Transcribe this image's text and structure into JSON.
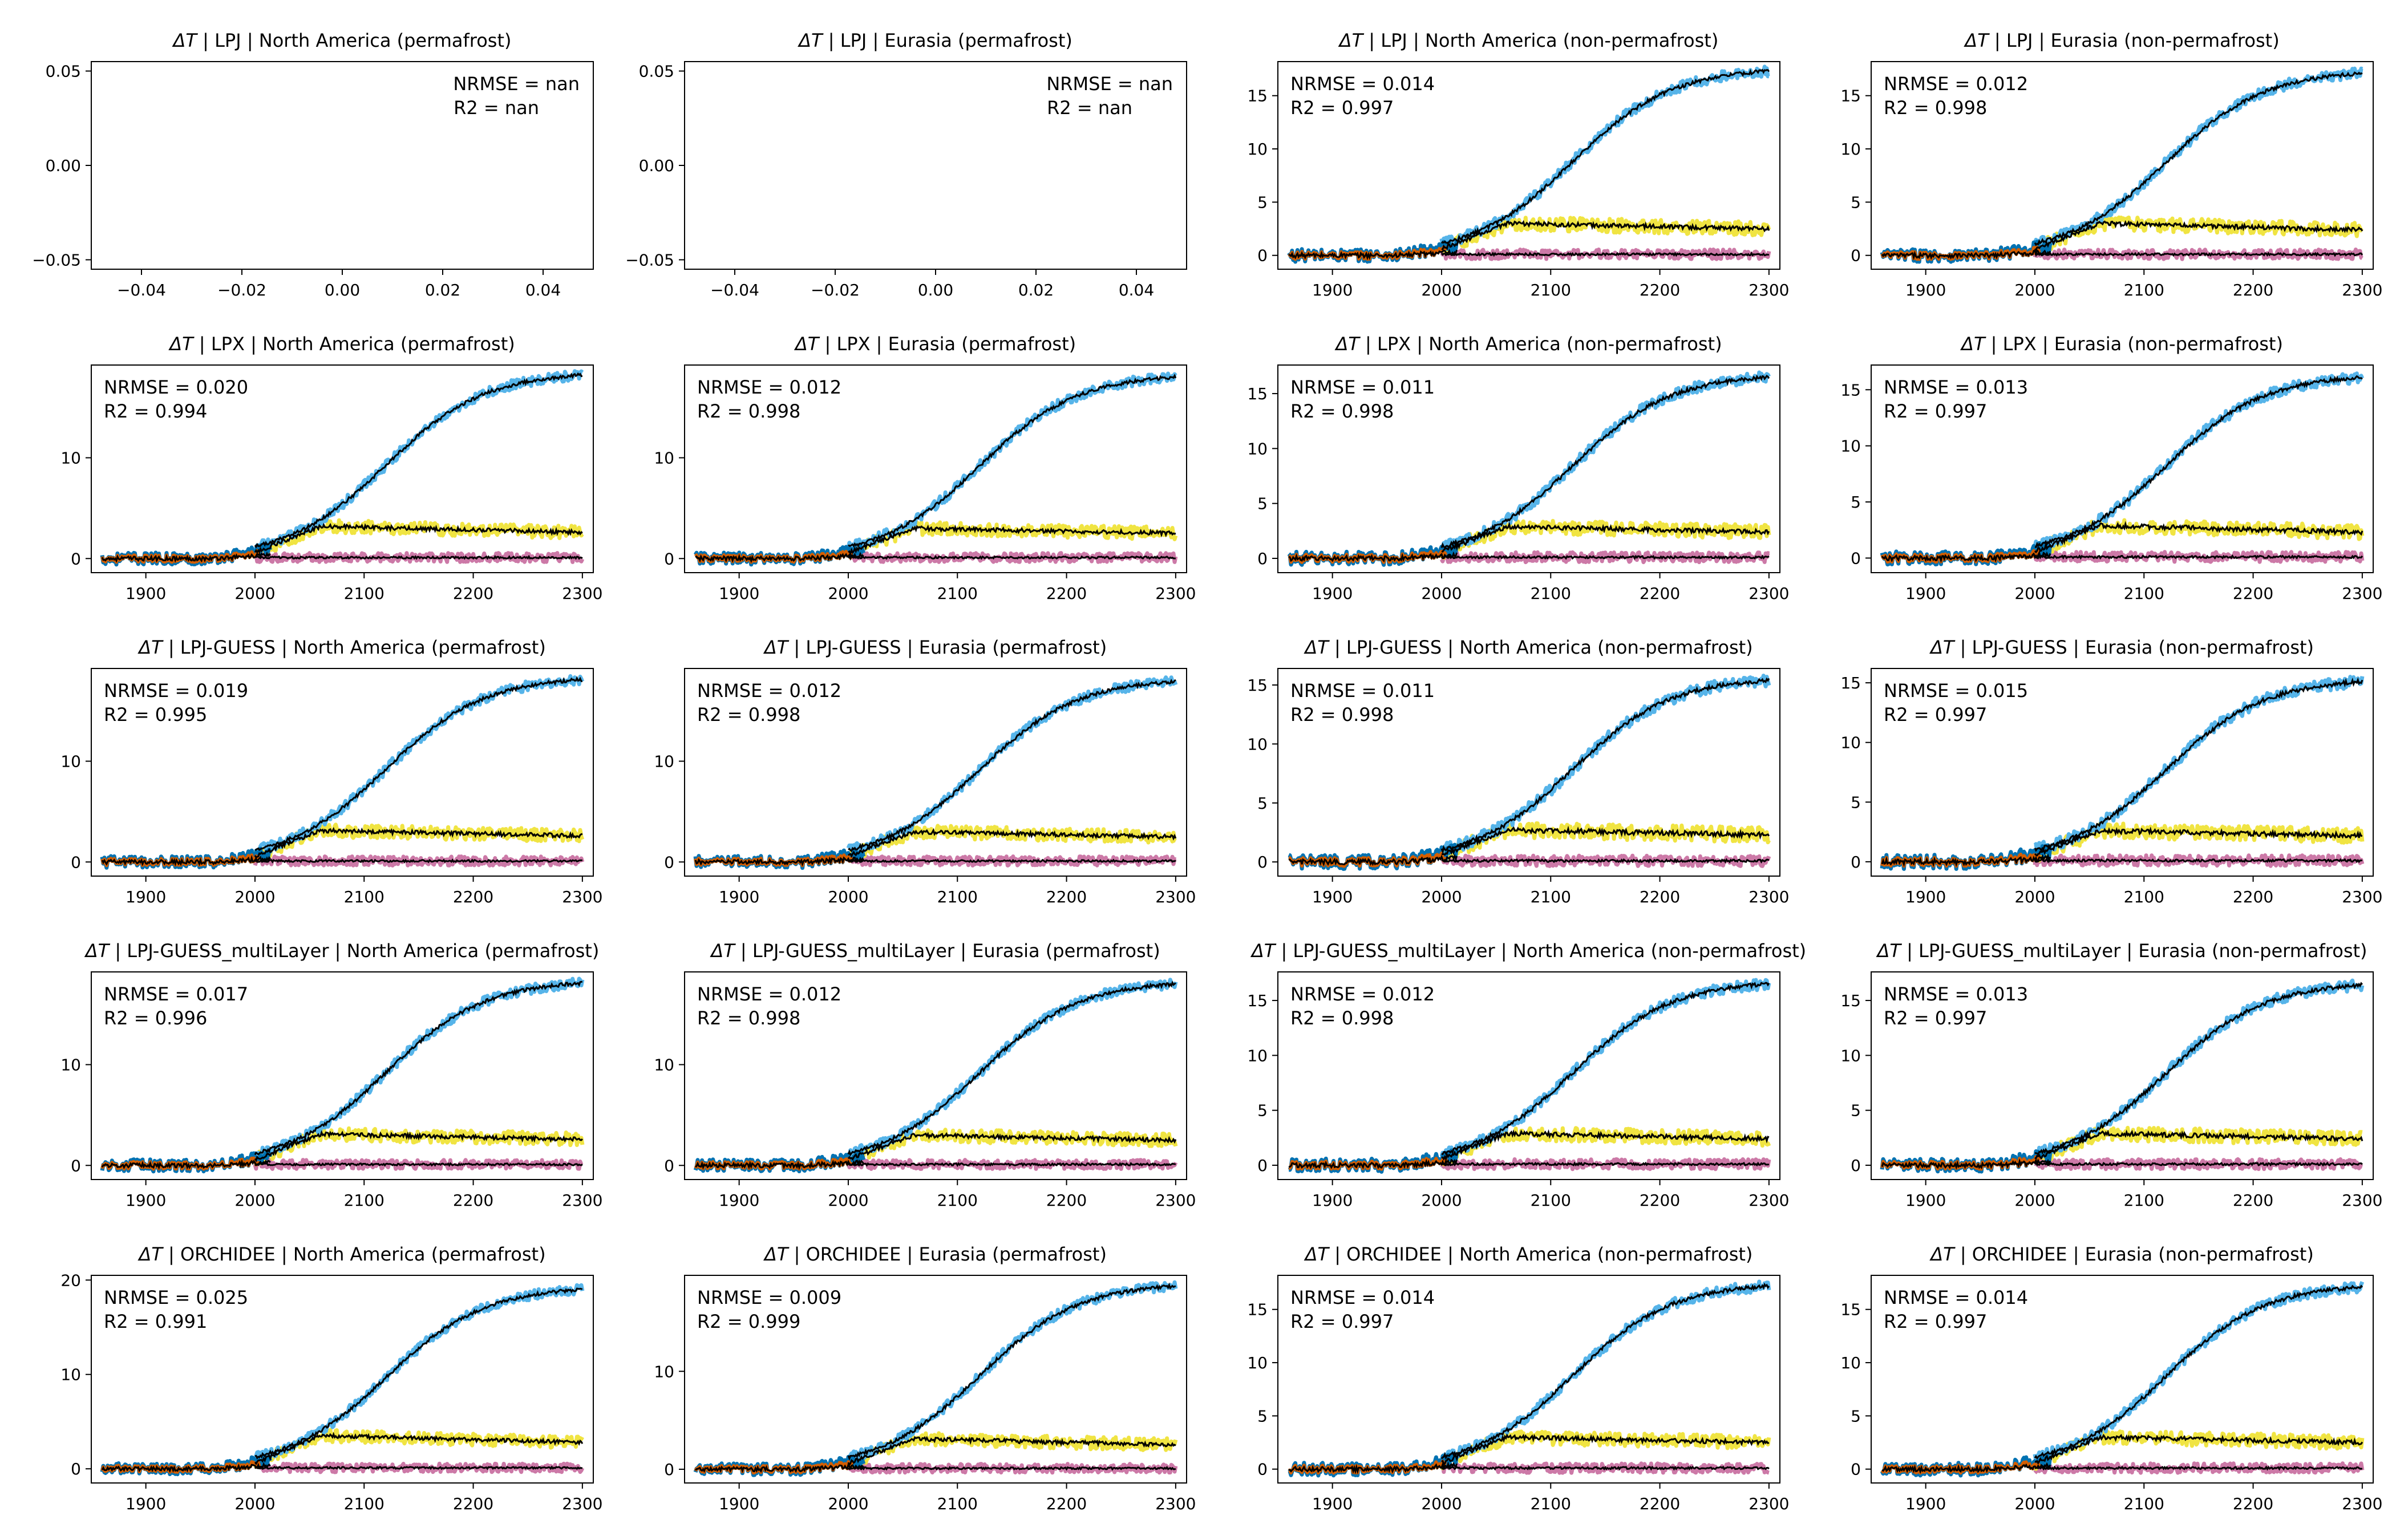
{
  "figure": {
    "colors": {
      "hist_a": "#0072b2",
      "hist_b": "#d55e00",
      "ssp_high": "#56b4e9",
      "ssp_mid": "#f0e442",
      "ssp_low": "#cc79a7",
      "emulator": "#000000"
    }
  },
  "chart_data": [
    {
      "type": "scatter",
      "title_var": "ΔT",
      "title": " | LPJ | North America (permafrost)",
      "nrmse": "NRMSE = nan",
      "r2": "R2 = nan",
      "empty": true,
      "xlim": [
        -0.05,
        0.05
      ],
      "ylim": [
        -0.055,
        0.055
      ],
      "xticks": [
        -0.04,
        -0.02,
        0.0,
        0.02,
        0.04
      ],
      "xtick_labels": [
        "−0.04",
        "−0.02",
        "0.00",
        "0.02",
        "0.04"
      ],
      "yticks": [
        -0.05,
        0.0,
        0.05
      ],
      "ytick_labels": [
        "−0.05",
        "0.00",
        "0.05"
      ],
      "stats_pos": "upper-right",
      "series": []
    },
    {
      "type": "scatter",
      "title_var": "ΔT",
      "title": " | LPJ | Eurasia (permafrost)",
      "nrmse": "NRMSE = nan",
      "r2": "R2 = nan",
      "empty": true,
      "xlim": [
        -0.05,
        0.05
      ],
      "ylim": [
        -0.055,
        0.055
      ],
      "xticks": [
        -0.04,
        -0.02,
        0.0,
        0.02,
        0.04
      ],
      "xtick_labels": [
        "−0.04",
        "−0.02",
        "0.00",
        "0.02",
        "0.04"
      ],
      "yticks": [
        -0.05,
        0.0,
        0.05
      ],
      "ytick_labels": [
        "−0.05",
        "0.00",
        "0.05"
      ],
      "stats_pos": "upper-right",
      "series": []
    },
    {
      "type": "line",
      "title_var": "ΔT",
      "title": " | LPJ | North America (non-permafrost)",
      "nrmse": "NRMSE = 0.014",
      "r2": "R2 = 0.997",
      "xlim": [
        1850,
        2310
      ],
      "ylim": [
        -1.3,
        18.2
      ],
      "xticks": [
        1900,
        2000,
        2100,
        2200,
        2300
      ],
      "xtick_labels": [
        "1900",
        "2000",
        "2100",
        "2200",
        "2300"
      ],
      "yticks": [
        0,
        5,
        10,
        15
      ],
      "ytick_labels": [
        "0",
        "5",
        "10",
        "15"
      ],
      "stats_pos": "upper-left",
      "high_end": 17.3,
      "mid_peak": 3.0,
      "mid_end": 2.5
    },
    {
      "type": "line",
      "title_var": "ΔT",
      "title": " | LPJ | Eurasia (non-permafrost)",
      "nrmse": "NRMSE = 0.012",
      "r2": "R2 = 0.998",
      "xlim": [
        1850,
        2310
      ],
      "ylim": [
        -1.3,
        18.2
      ],
      "xticks": [
        1900,
        2000,
        2100,
        2200,
        2300
      ],
      "xtick_labels": [
        "1900",
        "2000",
        "2100",
        "2200",
        "2300"
      ],
      "yticks": [
        0,
        5,
        10,
        15
      ],
      "ytick_labels": [
        "0",
        "5",
        "10",
        "15"
      ],
      "stats_pos": "upper-left",
      "high_end": 17.1,
      "mid_peak": 3.0,
      "mid_end": 2.4
    },
    {
      "type": "line",
      "title_var": "ΔT",
      "title": " | LPX | North America (permafrost)",
      "nrmse": "NRMSE = 0.020",
      "r2": "R2 = 0.994",
      "xlim": [
        1850,
        2310
      ],
      "ylim": [
        -1.4,
        19.2
      ],
      "xticks": [
        1900,
        2000,
        2100,
        2200,
        2300
      ],
      "xtick_labels": [
        "1900",
        "2000",
        "2100",
        "2200",
        "2300"
      ],
      "yticks": [
        0,
        10
      ],
      "ytick_labels": [
        "0",
        "10"
      ],
      "stats_pos": "upper-left",
      "high_end": 18.2,
      "mid_peak": 3.2,
      "mid_end": 2.6
    },
    {
      "type": "line",
      "title_var": "ΔT",
      "title": " | LPX | Eurasia (permafrost)",
      "nrmse": "NRMSE = 0.012",
      "r2": "R2 = 0.998",
      "xlim": [
        1850,
        2310
      ],
      "ylim": [
        -1.4,
        19.2
      ],
      "xticks": [
        1900,
        2000,
        2100,
        2200,
        2300
      ],
      "xtick_labels": [
        "1900",
        "2000",
        "2100",
        "2200",
        "2300"
      ],
      "yticks": [
        0,
        10
      ],
      "ytick_labels": [
        "0",
        "10"
      ],
      "stats_pos": "upper-left",
      "high_end": 18.0,
      "mid_peak": 3.0,
      "mid_end": 2.5
    },
    {
      "type": "line",
      "title_var": "ΔT",
      "title": " | LPX | North America (non-permafrost)",
      "nrmse": "NRMSE = 0.011",
      "r2": "R2 = 0.998",
      "xlim": [
        1850,
        2310
      ],
      "ylim": [
        -1.3,
        17.6
      ],
      "xticks": [
        1900,
        2000,
        2100,
        2200,
        2300
      ],
      "xtick_labels": [
        "1900",
        "2000",
        "2100",
        "2200",
        "2300"
      ],
      "yticks": [
        0,
        5,
        10,
        15
      ],
      "ytick_labels": [
        "0",
        "5",
        "10",
        "15"
      ],
      "stats_pos": "upper-left",
      "high_end": 16.5,
      "mid_peak": 2.9,
      "mid_end": 2.4
    },
    {
      "type": "line",
      "title_var": "ΔT",
      "title": " | LPX | Eurasia (non-permafrost)",
      "nrmse": "NRMSE = 0.013",
      "r2": "R2 = 0.997",
      "xlim": [
        1850,
        2310
      ],
      "ylim": [
        -1.3,
        17.2
      ],
      "xticks": [
        1900,
        2000,
        2100,
        2200,
        2300
      ],
      "xtick_labels": [
        "1900",
        "2000",
        "2100",
        "2200",
        "2300"
      ],
      "yticks": [
        0,
        5,
        10,
        15
      ],
      "ytick_labels": [
        "0",
        "5",
        "10",
        "15"
      ],
      "stats_pos": "upper-left",
      "high_end": 16.1,
      "mid_peak": 2.9,
      "mid_end": 2.3
    },
    {
      "type": "line",
      "title_var": "ΔT",
      "title": " | LPJ-GUESS | North America (permafrost)",
      "nrmse": "NRMSE = 0.019",
      "r2": "R2 = 0.995",
      "xlim": [
        1850,
        2310
      ],
      "ylim": [
        -1.4,
        19.2
      ],
      "xticks": [
        1900,
        2000,
        2100,
        2200,
        2300
      ],
      "xtick_labels": [
        "1900",
        "2000",
        "2100",
        "2200",
        "2300"
      ],
      "yticks": [
        0,
        10
      ],
      "ytick_labels": [
        "0",
        "10"
      ],
      "stats_pos": "upper-left",
      "high_end": 18.1,
      "mid_peak": 3.1,
      "mid_end": 2.6
    },
    {
      "type": "line",
      "title_var": "ΔT",
      "title": " | LPJ-GUESS | Eurasia (permafrost)",
      "nrmse": "NRMSE = 0.012",
      "r2": "R2 = 0.998",
      "xlim": [
        1850,
        2310
      ],
      "ylim": [
        -1.4,
        19.2
      ],
      "xticks": [
        1900,
        2000,
        2100,
        2200,
        2300
      ],
      "xtick_labels": [
        "1900",
        "2000",
        "2100",
        "2200",
        "2300"
      ],
      "yticks": [
        0,
        10
      ],
      "ytick_labels": [
        "0",
        "10"
      ],
      "stats_pos": "upper-left",
      "high_end": 17.9,
      "mid_peak": 3.0,
      "mid_end": 2.5
    },
    {
      "type": "line",
      "title_var": "ΔT",
      "title": " | LPJ-GUESS | North America (non-permafrost)",
      "nrmse": "NRMSE = 0.011",
      "r2": "R2 = 0.998",
      "xlim": [
        1850,
        2310
      ],
      "ylim": [
        -1.2,
        16.4
      ],
      "xticks": [
        1900,
        2000,
        2100,
        2200,
        2300
      ],
      "xtick_labels": [
        "1900",
        "2000",
        "2100",
        "2200",
        "2300"
      ],
      "yticks": [
        0,
        5,
        10,
        15
      ],
      "ytick_labels": [
        "0",
        "5",
        "10",
        "15"
      ],
      "stats_pos": "upper-left",
      "high_end": 15.4,
      "mid_peak": 2.7,
      "mid_end": 2.3
    },
    {
      "type": "line",
      "title_var": "ΔT",
      "title": " | LPJ-GUESS | Eurasia (non-permafrost)",
      "nrmse": "NRMSE = 0.015",
      "r2": "R2 = 0.997",
      "xlim": [
        1850,
        2310
      ],
      "ylim": [
        -1.2,
        16.2
      ],
      "xticks": [
        1900,
        2000,
        2100,
        2200,
        2300
      ],
      "xtick_labels": [
        "1900",
        "2000",
        "2100",
        "2200",
        "2300"
      ],
      "yticks": [
        0,
        5,
        10,
        15
      ],
      "ytick_labels": [
        "0",
        "5",
        "10",
        "15"
      ],
      "stats_pos": "upper-left",
      "high_end": 15.1,
      "mid_peak": 2.6,
      "mid_end": 2.2
    },
    {
      "type": "line",
      "title_var": "ΔT",
      "title": " | LPJ-GUESS_multiLayer | North America (permafrost)",
      "nrmse": "NRMSE = 0.017",
      "r2": "R2 = 0.996",
      "xlim": [
        1850,
        2310
      ],
      "ylim": [
        -1.4,
        19.2
      ],
      "xticks": [
        1900,
        2000,
        2100,
        2200,
        2300
      ],
      "xtick_labels": [
        "1900",
        "2000",
        "2100",
        "2200",
        "2300"
      ],
      "yticks": [
        0,
        10
      ],
      "ytick_labels": [
        "0",
        "10"
      ],
      "stats_pos": "upper-left",
      "high_end": 18.1,
      "mid_peak": 3.1,
      "mid_end": 2.6
    },
    {
      "type": "line",
      "title_var": "ΔT",
      "title": " | LPJ-GUESS_multiLayer | Eurasia (permafrost)",
      "nrmse": "NRMSE = 0.012",
      "r2": "R2 = 0.998",
      "xlim": [
        1850,
        2310
      ],
      "ylim": [
        -1.4,
        19.2
      ],
      "xticks": [
        1900,
        2000,
        2100,
        2200,
        2300
      ],
      "xtick_labels": [
        "1900",
        "2000",
        "2100",
        "2200",
        "2300"
      ],
      "yticks": [
        0,
        10
      ],
      "ytick_labels": [
        "0",
        "10"
      ],
      "stats_pos": "upper-left",
      "high_end": 18.0,
      "mid_peak": 3.0,
      "mid_end": 2.5
    },
    {
      "type": "line",
      "title_var": "ΔT",
      "title": " | LPJ-GUESS_multiLayer | North America (non-permafrost)",
      "nrmse": "NRMSE = 0.012",
      "r2": "R2 = 0.998",
      "xlim": [
        1850,
        2310
      ],
      "ylim": [
        -1.3,
        17.6
      ],
      "xticks": [
        1900,
        2000,
        2100,
        2200,
        2300
      ],
      "xtick_labels": [
        "1900",
        "2000",
        "2100",
        "2200",
        "2300"
      ],
      "yticks": [
        0,
        5,
        10,
        15
      ],
      "ytick_labels": [
        "0",
        "5",
        "10",
        "15"
      ],
      "stats_pos": "upper-left",
      "high_end": 16.5,
      "mid_peak": 2.9,
      "mid_end": 2.4
    },
    {
      "type": "line",
      "title_var": "ΔT",
      "title": " | LPJ-GUESS_multiLayer | Eurasia (non-permafrost)",
      "nrmse": "NRMSE = 0.013",
      "r2": "R2 = 0.997",
      "xlim": [
        1850,
        2310
      ],
      "ylim": [
        -1.3,
        17.6
      ],
      "xticks": [
        1900,
        2000,
        2100,
        2200,
        2300
      ],
      "xtick_labels": [
        "1900",
        "2000",
        "2100",
        "2200",
        "2300"
      ],
      "yticks": [
        0,
        5,
        10,
        15
      ],
      "ytick_labels": [
        "0",
        "5",
        "10",
        "15"
      ],
      "stats_pos": "upper-left",
      "high_end": 16.4,
      "mid_peak": 2.9,
      "mid_end": 2.4
    },
    {
      "type": "line",
      "title_var": "ΔT",
      "title": " | ORCHIDEE | North America (permafrost)",
      "nrmse": "NRMSE = 0.025",
      "r2": "R2 = 0.991",
      "xlim": [
        1850,
        2310
      ],
      "ylim": [
        -1.5,
        20.5
      ],
      "xticks": [
        1900,
        2000,
        2100,
        2200,
        2300
      ],
      "xtick_labels": [
        "1900",
        "2000",
        "2100",
        "2200",
        "2300"
      ],
      "yticks": [
        0,
        10,
        20
      ],
      "ytick_labels": [
        "0",
        "10",
        "20"
      ],
      "stats_pos": "upper-left",
      "high_end": 19.0,
      "mid_peak": 3.5,
      "mid_end": 2.8
    },
    {
      "type": "line",
      "title_var": "ΔT",
      "title": " | ORCHIDEE | Eurasia (permafrost)",
      "nrmse": "NRMSE = 0.009",
      "r2": "R2 = 0.999",
      "xlim": [
        1850,
        2310
      ],
      "ylim": [
        -1.4,
        19.8
      ],
      "xticks": [
        1900,
        2000,
        2100,
        2200,
        2300
      ],
      "xtick_labels": [
        "1900",
        "2000",
        "2100",
        "2200",
        "2300"
      ],
      "yticks": [
        0,
        10
      ],
      "ytick_labels": [
        "0",
        "10"
      ],
      "stats_pos": "upper-left",
      "high_end": 18.7,
      "mid_peak": 3.1,
      "mid_end": 2.5
    },
    {
      "type": "line",
      "title_var": "ΔT",
      "title": " | ORCHIDEE | North America (non-permafrost)",
      "nrmse": "NRMSE = 0.014",
      "r2": "R2 = 0.997",
      "xlim": [
        1850,
        2310
      ],
      "ylim": [
        -1.3,
        18.2
      ],
      "xticks": [
        1900,
        2000,
        2100,
        2200,
        2300
      ],
      "xtick_labels": [
        "1900",
        "2000",
        "2100",
        "2200",
        "2300"
      ],
      "yticks": [
        0,
        5,
        10,
        15
      ],
      "ytick_labels": [
        "0",
        "5",
        "10",
        "15"
      ],
      "stats_pos": "upper-left",
      "high_end": 17.2,
      "mid_peak": 3.0,
      "mid_end": 2.5
    },
    {
      "type": "line",
      "title_var": "ΔT",
      "title": " | ORCHIDEE | Eurasia (non-permafrost)",
      "nrmse": "NRMSE = 0.014",
      "r2": "R2 = 0.997",
      "xlim": [
        1850,
        2310
      ],
      "ylim": [
        -1.3,
        18.2
      ],
      "xticks": [
        1900,
        2000,
        2100,
        2200,
        2300
      ],
      "xtick_labels": [
        "1900",
        "2000",
        "2100",
        "2200",
        "2300"
      ],
      "yticks": [
        0,
        5,
        10,
        15
      ],
      "ytick_labels": [
        "0",
        "5",
        "10",
        "15"
      ],
      "stats_pos": "upper-left",
      "high_end": 17.1,
      "mid_peak": 3.0,
      "mid_end": 2.5
    }
  ]
}
